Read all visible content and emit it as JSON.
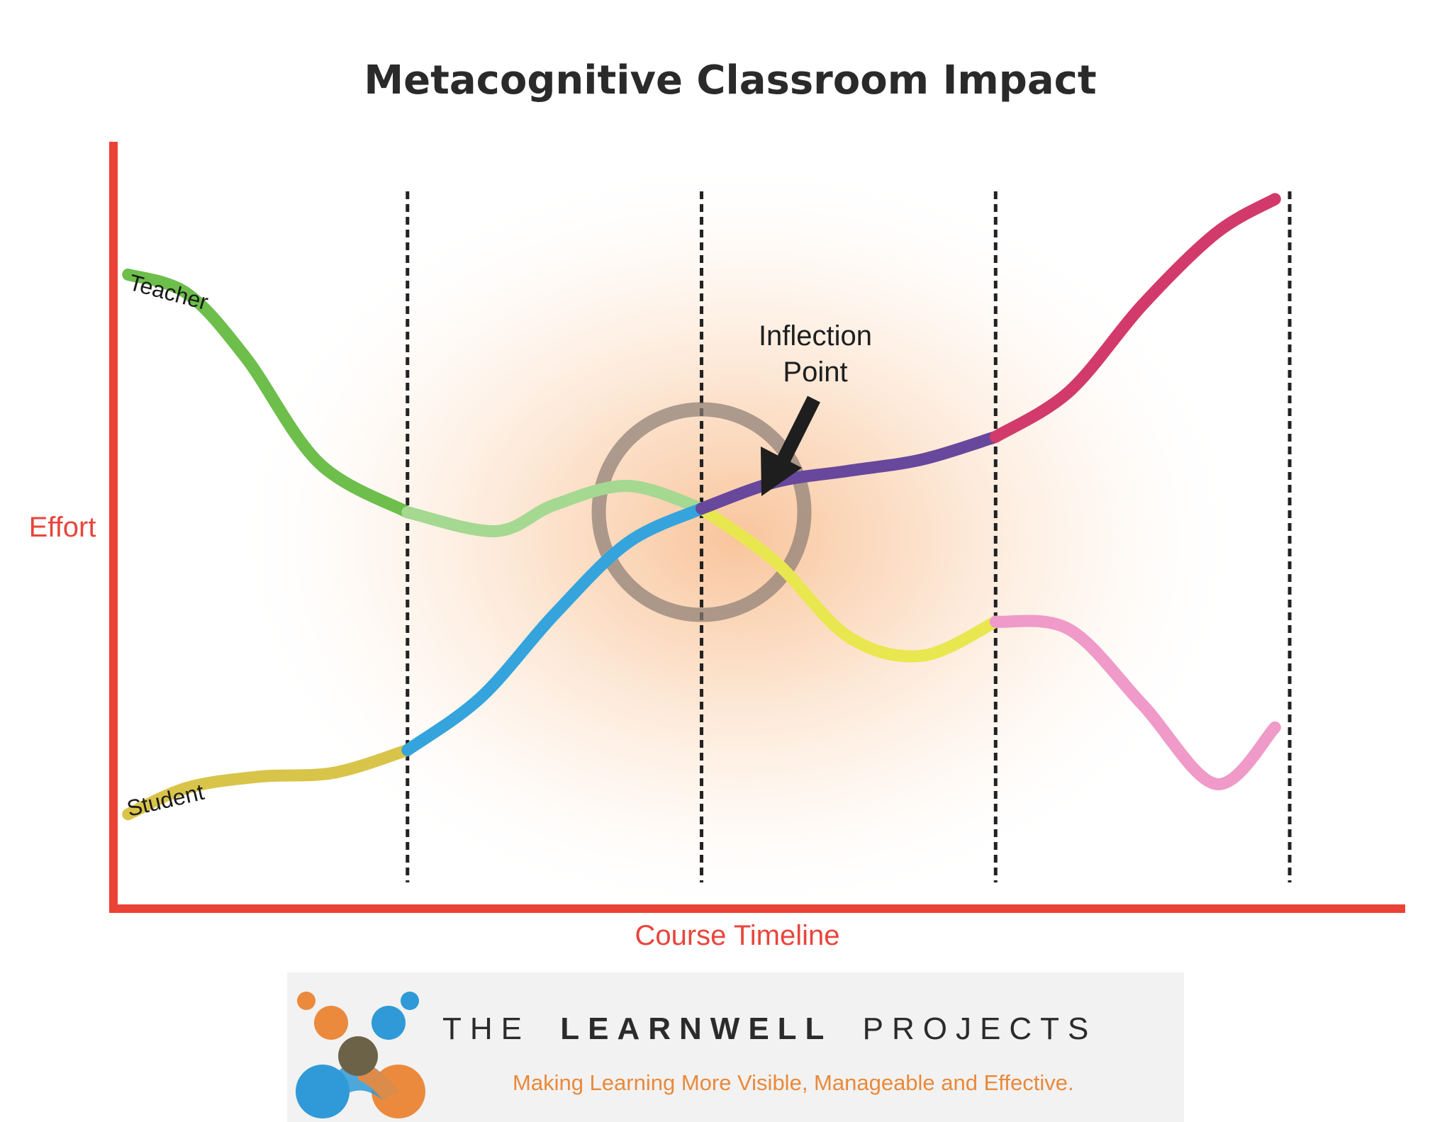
{
  "chart_data": {
    "type": "line",
    "title": "Metacognitive Classroom Impact",
    "xlabel": "Course Timeline",
    "ylabel": "Effort",
    "xlim": [
      0,
      4.2
    ],
    "ylim": [
      0,
      10
    ],
    "phase_boundaries": [
      1,
      2,
      3,
      4
    ],
    "grid": false,
    "legend": "none",
    "series": [
      {
        "name": "Teacher",
        "segments": [
          {
            "color": "#6dbe4b",
            "points": [
              [
                0.05,
                8.1
              ],
              [
                0.25,
                7.85
              ],
              [
                0.45,
                7.0
              ],
              [
                0.7,
                5.6
              ],
              [
                1.0,
                4.95
              ]
            ]
          },
          {
            "color": "#a5d891",
            "points": [
              [
                1.0,
                4.95
              ],
              [
                1.3,
                4.7
              ],
              [
                1.5,
                5.05
              ],
              [
                1.75,
                5.3
              ],
              [
                2.0,
                5.0
              ]
            ]
          },
          {
            "color": "#e9e74f",
            "points": [
              [
                2.0,
                5.0
              ],
              [
                2.25,
                4.3
              ],
              [
                2.5,
                3.3
              ],
              [
                2.75,
                3.05
              ],
              [
                3.0,
                3.5
              ]
            ]
          },
          {
            "color": "#ef9ac8",
            "points": [
              [
                3.0,
                3.5
              ],
              [
                3.25,
                3.4
              ],
              [
                3.5,
                2.4
              ],
              [
                3.75,
                1.35
              ],
              [
                3.95,
                2.1
              ]
            ]
          }
        ]
      },
      {
        "name": "Student",
        "segments": [
          {
            "color": "#d9c44a",
            "points": [
              [
                0.05,
                0.95
              ],
              [
                0.25,
                1.3
              ],
              [
                0.5,
                1.45
              ],
              [
                0.75,
                1.5
              ],
              [
                1.0,
                1.8
              ]
            ]
          },
          {
            "color": "#35a4dc",
            "points": [
              [
                1.0,
                1.8
              ],
              [
                1.25,
                2.5
              ],
              [
                1.5,
                3.6
              ],
              [
                1.75,
                4.55
              ],
              [
                2.0,
                5.0
              ]
            ]
          },
          {
            "color": "#67489c",
            "points": [
              [
                2.0,
                5.0
              ],
              [
                2.25,
                5.35
              ],
              [
                2.5,
                5.5
              ],
              [
                2.75,
                5.65
              ],
              [
                3.0,
                5.95
              ]
            ]
          },
          {
            "color": "#d23a6c",
            "points": [
              [
                3.0,
                5.95
              ],
              [
                3.25,
                6.55
              ],
              [
                3.5,
                7.7
              ],
              [
                3.75,
                8.65
              ],
              [
                3.95,
                9.1
              ]
            ]
          }
        ]
      }
    ],
    "annotations": [
      {
        "text_lines": [
          "Inflection",
          "Point"
        ],
        "x": 2.0,
        "y": 5.0
      }
    ]
  },
  "colors": {
    "axis": "#ea4335",
    "axis_text": "#e8453c",
    "title": "#2a2a2a",
    "glow": "#f7b37a",
    "inflection_ring": "#8a7c74",
    "arrow": "#1e1e1e",
    "divider": "#222222",
    "logo_orange": "#eb8a3d",
    "logo_blue": "#2f9ad7",
    "logo_olive": "#6c6248",
    "brand_text": "#2b2b2b",
    "tagline": "#e9893a"
  },
  "logo": {
    "prefix": "THE",
    "name": "LEARNWELL",
    "suffix": "PROJECTS",
    "tagline": "Making Learning More Visible, Manageable and Effective."
  }
}
